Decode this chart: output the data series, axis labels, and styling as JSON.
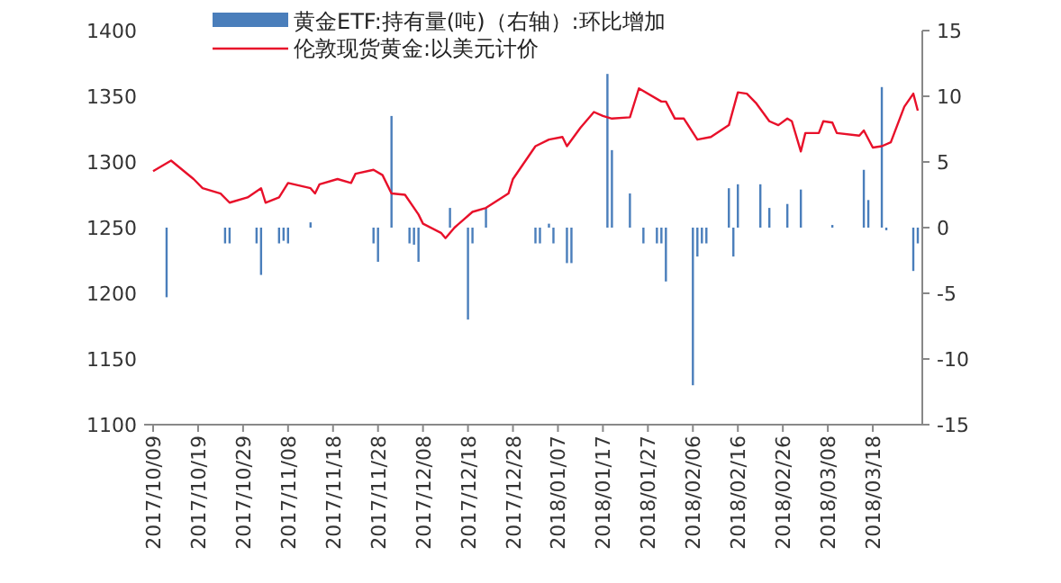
{
  "chart_data": {
    "type": "bar",
    "legend": "top left",
    "xlim": [
      "2017-10-07",
      "2018-03-29"
    ],
    "xticks": [
      {
        "value": "2017-10-09",
        "label": "2017/10/09"
      },
      {
        "value": "2017-10-19",
        "label": "2017/10/19"
      },
      {
        "value": "2017-10-29",
        "label": "2017/10/29"
      },
      {
        "value": "2017-11-08",
        "label": "2017/11/08"
      },
      {
        "value": "2017-11-18",
        "label": "2017/11/18"
      },
      {
        "value": "2017-11-28",
        "label": "2017/11/28"
      },
      {
        "value": "2017-12-08",
        "label": "2017/12/08"
      },
      {
        "value": "2017-12-18",
        "label": "2017/12/18"
      },
      {
        "value": "2017-12-28",
        "label": "2017/12/28"
      },
      {
        "value": "2018-01-07",
        "label": "2018/01/07"
      },
      {
        "value": "2018-01-17",
        "label": "2018/01/17"
      },
      {
        "value": "2018-01-27",
        "label": "2018/01/27"
      },
      {
        "value": "2018-02-06",
        "label": "2018/02/06"
      },
      {
        "value": "2018-02-16",
        "label": "2018/02/16"
      },
      {
        "value": "2018-02-26",
        "label": "2018/02/26"
      },
      {
        "value": "2018-03-08",
        "label": "2018/03/08"
      },
      {
        "value": "2018-03-18",
        "label": "2018/03/18"
      }
    ],
    "ylim": [
      1100,
      1400
    ],
    "yticks": [
      1100,
      1150,
      1200,
      1250,
      1300,
      1350,
      1400
    ],
    "y2lim": [
      -15,
      15
    ],
    "y2ticks": [
      -15,
      -10,
      -5,
      0,
      5,
      10,
      15
    ],
    "series": [
      {
        "name": "黄金ETF:持有量(吨)（右轴）:环比增加",
        "axis": "y2",
        "color": "#4a7ebb",
        "x": [
          "2017-10-12",
          "2017-10-25",
          "2017-10-26",
          "2017-11-01",
          "2017-11-02",
          "2017-11-06",
          "2017-11-07",
          "2017-11-08",
          "2017-11-13",
          "2017-11-27",
          "2017-11-28",
          "2017-12-01",
          "2017-12-05",
          "2017-12-06",
          "2017-12-07",
          "2017-12-14",
          "2017-12-18",
          "2017-12-19",
          "2017-12-22",
          "2018-01-02",
          "2018-01-03",
          "2018-01-05",
          "2018-01-06",
          "2018-01-09",
          "2018-01-10",
          "2018-01-18",
          "2018-01-19",
          "2018-01-23",
          "2018-01-26",
          "2018-01-29",
          "2018-01-30",
          "2018-01-31",
          "2018-02-06",
          "2018-02-07",
          "2018-02-08",
          "2018-02-09",
          "2018-02-14",
          "2018-02-15",
          "2018-02-16",
          "2018-02-21",
          "2018-02-23",
          "2018-02-27",
          "2018-03-02",
          "2018-03-09",
          "2018-03-16",
          "2018-03-17",
          "2018-03-20",
          "2018-03-21",
          "2018-03-27",
          "2018-03-28"
        ],
        "values": [
          -5.3,
          -1.2,
          -1.2,
          -1.2,
          -3.6,
          -1.2,
          -1.0,
          -1.2,
          0.4,
          -1.2,
          -2.6,
          8.5,
          -1.2,
          -1.3,
          -2.6,
          1.5,
          -7.0,
          -1.2,
          1.5,
          -1.2,
          -1.2,
          0.3,
          -1.2,
          -2.7,
          -2.7,
          11.7,
          5.9,
          2.6,
          -1.2,
          -1.2,
          -1.2,
          -4.1,
          -12.0,
          -2.2,
          -1.2,
          -1.2,
          3.0,
          -2.2,
          3.3,
          3.3,
          1.5,
          1.8,
          2.9,
          0.2,
          4.4,
          2.1,
          10.7,
          -0.2,
          -3.3,
          -1.2
        ]
      },
      {
        "name": "伦敦现货黄金:以美元计价",
        "type": "line",
        "color": "#e8102a",
        "x": [
          "2017-10-09",
          "2017-10-13",
          "2017-10-18",
          "2017-10-20",
          "2017-10-22",
          "2017-10-24",
          "2017-10-26",
          "2017-10-30",
          "2017-11-02",
          "2017-11-03",
          "2017-11-06",
          "2017-11-08",
          "2017-11-13",
          "2017-11-14",
          "2017-11-15",
          "2017-11-19",
          "2017-11-22",
          "2017-11-23",
          "2017-11-27",
          "2017-11-29",
          "2017-12-01",
          "2017-12-04",
          "2017-12-07",
          "2017-12-08",
          "2017-12-12",
          "2017-12-13",
          "2017-12-15",
          "2017-12-19",
          "2017-12-22",
          "2017-12-27",
          "2017-12-28",
          "2018-01-02",
          "2018-01-05",
          "2018-01-08",
          "2018-01-09",
          "2018-01-12",
          "2018-01-15",
          "2018-01-17",
          "2018-01-19",
          "2018-01-23",
          "2018-01-25",
          "2018-01-30",
          "2018-01-31",
          "2018-02-02",
          "2018-02-04",
          "2018-02-07",
          "2018-02-10",
          "2018-02-14",
          "2018-02-16",
          "2018-02-18",
          "2018-02-20",
          "2018-02-23",
          "2018-02-25",
          "2018-02-27",
          "2018-02-28",
          "2018-03-02",
          "2018-03-03",
          "2018-03-06",
          "2018-03-07",
          "2018-03-09",
          "2018-03-10",
          "2018-03-15",
          "2018-03-16",
          "2018-03-18",
          "2018-03-20",
          "2018-03-22",
          "2018-03-25",
          "2018-03-27",
          "2018-03-28"
        ],
        "values": [
          1293,
          1301,
          1287,
          1280,
          1278,
          1276,
          1269,
          1273,
          1280,
          1269,
          1273,
          1284,
          1280,
          1276,
          1283,
          1287,
          1284,
          1291,
          1294,
          1290,
          1276,
          1275,
          1260,
          1253,
          1246,
          1242,
          1250,
          1262,
          1265,
          1276,
          1287,
          1312,
          1317,
          1319,
          1312,
          1326,
          1338,
          1335,
          1333,
          1334,
          1356,
          1346,
          1346,
          1333,
          1333,
          1317,
          1319,
          1328,
          1353,
          1352,
          1345,
          1331,
          1328,
          1333,
          1331,
          1308,
          1322,
          1322,
          1331,
          1330,
          1322,
          1320,
          1324,
          1311,
          1312,
          1315,
          1342,
          1352,
          1339
        ]
      }
    ]
  }
}
